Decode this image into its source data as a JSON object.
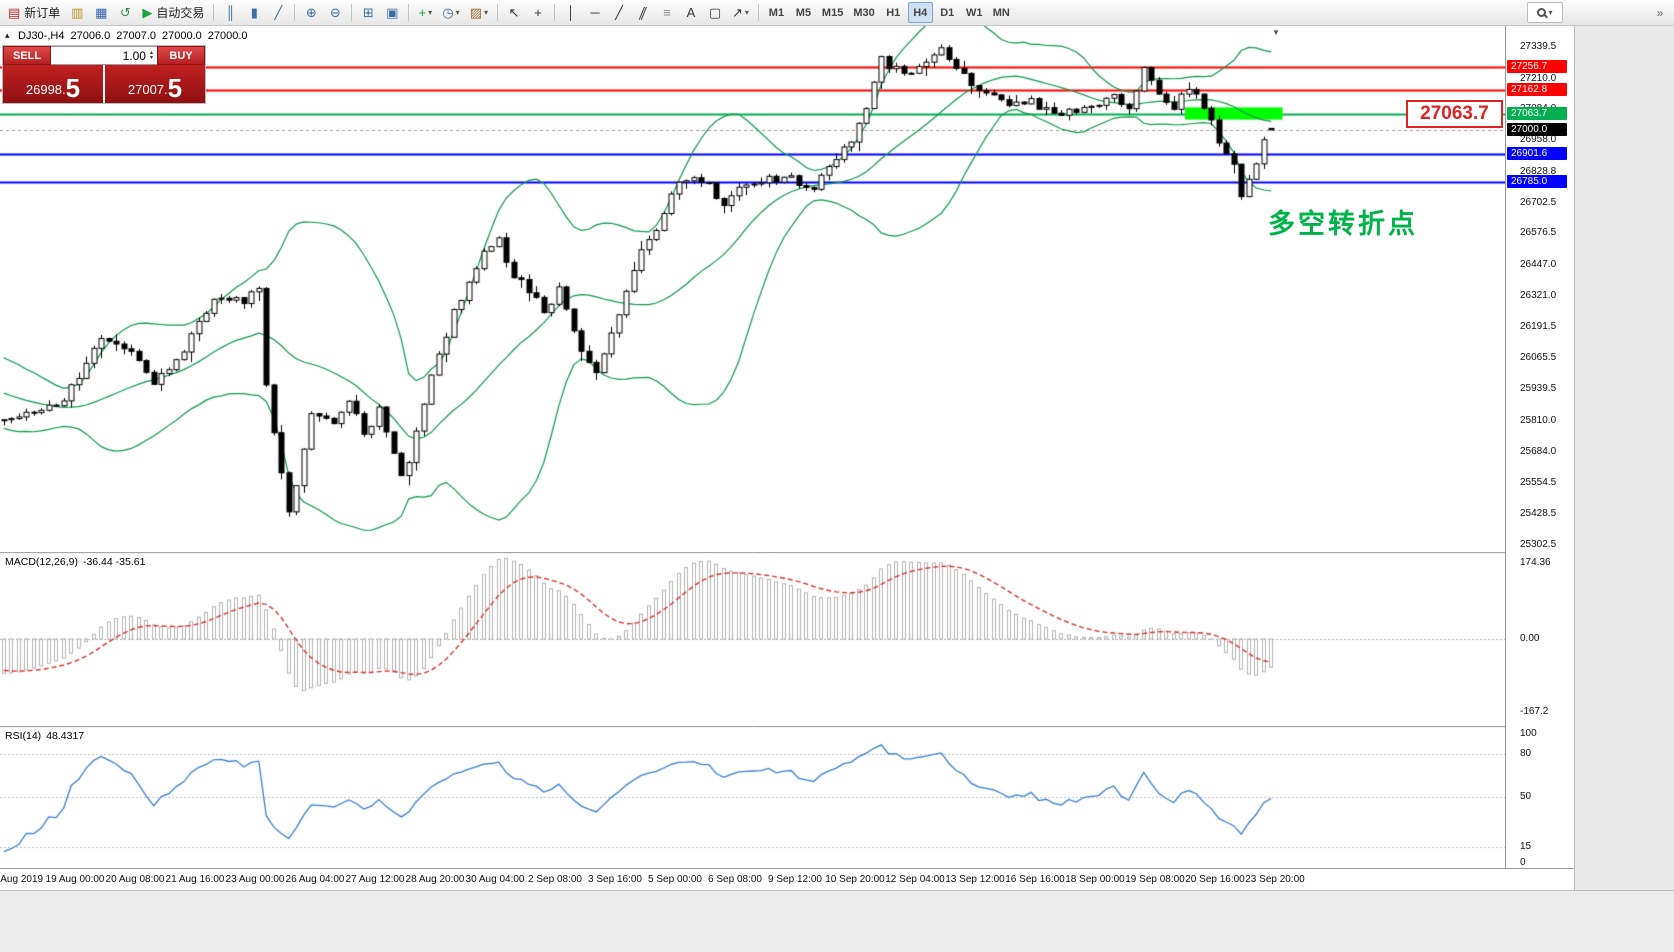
{
  "toolbar": {
    "groups": [
      {
        "items": [
          {
            "name": "new-order",
            "glyph": "▤",
            "color": "#b03030",
            "label": "新订单"
          },
          {
            "name": "chart-window",
            "glyph": "▥",
            "color": "#c09020"
          },
          {
            "name": "profiles",
            "glyph": "▦",
            "color": "#3060b0"
          },
          {
            "name": "refresh",
            "glyph": "↺",
            "color": "#309050"
          },
          {
            "name": "autotrading",
            "glyph": "▶",
            "color": "#1fa33c",
            "label": "自动交易"
          }
        ]
      },
      {
        "items": [
          {
            "name": "bar-chart",
            "glyph": "║",
            "color": "#3a6ea5"
          },
          {
            "name": "candlestick-chart",
            "glyph": "▮",
            "color": "#3a6ea5"
          },
          {
            "name": "line-chart",
            "glyph": "╱",
            "color": "#3a6ea5"
          }
        ]
      },
      {
        "items": [
          {
            "name": "zoom-in",
            "glyph": "⊕",
            "color": "#3a6ea5"
          },
          {
            "name": "zoom-out",
            "glyph": "⊖",
            "color": "#3a6ea5"
          }
        ]
      },
      {
        "items": [
          {
            "name": "tile-windows",
            "glyph": "⊞",
            "color": "#3a6ea5"
          },
          {
            "name": "cascade-windows",
            "glyph": "▣",
            "color": "#3a6ea5"
          }
        ]
      },
      {
        "items": [
          {
            "name": "indicators",
            "glyph": "+",
            "color": "#1fa33c",
            "dd": true
          },
          {
            "name": "periods",
            "glyph": "◷",
            "color": "#3a6ea5",
            "dd": true
          },
          {
            "name": "templates",
            "glyph": "▨",
            "color": "#9a6a30",
            "dd": true
          }
        ]
      },
      {
        "items": [
          {
            "name": "cursor",
            "glyph": "↖",
            "color": "#333333"
          },
          {
            "name": "crosshair",
            "glyph": "+",
            "color": "#333333"
          }
        ]
      },
      {
        "items": [
          {
            "name": "vertical-line",
            "glyph": "│",
            "color": "#333333"
          },
          {
            "name": "horizontal-line",
            "glyph": "─",
            "color": "#333333"
          },
          {
            "name": "trendline",
            "glyph": "╱",
            "color": "#333333"
          },
          {
            "name": "equidistant-channel",
            "glyph": "∥",
            "color": "#333333",
            "skew": true
          },
          {
            "name": "fibonacci",
            "glyph": "≡",
            "color": "#888888"
          },
          {
            "name": "text",
            "glyph": "A",
            "color": "#333333"
          },
          {
            "name": "text-label",
            "glyph": "▢",
            "color": "#333333"
          },
          {
            "name": "arrows",
            "glyph": "↗",
            "color": "#333333",
            "dd": true
          }
        ]
      }
    ],
    "timeframes": [
      "M1",
      "M5",
      "M15",
      "M30",
      "H1",
      "H4",
      "D1",
      "W1",
      "MN"
    ],
    "active_timeframe": "H4",
    "overflow_glyph": "»"
  },
  "chart": {
    "header": {
      "symbol_tf": "DJ30-,H4",
      "open": "27006.0",
      "high": "27007.0",
      "low": "27000.0",
      "close": "27000.0"
    },
    "one_click": {
      "sell_label": "SELL",
      "buy_label": "BUY",
      "volume": "1.00",
      "sell_price": "26998.",
      "sell_price_big": "5",
      "buy_price": "27007.",
      "buy_price_big": "5"
    },
    "price_axis_labels": [
      27339.5,
      27210.0,
      27084.0,
      26958.0,
      26828.8,
      26702.5,
      26576.5,
      26447.0,
      26321.0,
      26191.5,
      26065.5,
      25939.5,
      25810.0,
      25684.0,
      25554.5,
      25428.5,
      25302.5
    ],
    "annotations": {
      "turning_point": {
        "text": "多空转折点",
        "color": "#00b44a"
      },
      "callout": {
        "text": "27063.7",
        "color": "#e02222"
      }
    }
  },
  "macd": {
    "label": "MACD(12,26,9)",
    "values": "-36.44 -35.61",
    "axis": [
      {
        "v": 174.36,
        "t": "174.36"
      },
      {
        "v": 0,
        "t": "0.00"
      },
      {
        "v": -167.2,
        "t": "-167.2"
      }
    ]
  },
  "rsi": {
    "label": "RSI(14)",
    "value": "48.4317",
    "axis": [
      {
        "v": 100,
        "t": "100"
      },
      {
        "v": 80,
        "t": "80"
      },
      {
        "v": 50,
        "t": "50"
      },
      {
        "v": 15,
        "t": "15"
      },
      {
        "v": 0,
        "t": "0"
      }
    ]
  },
  "time_axis": {
    "labels": [
      "15 Aug 2019",
      "19 Aug 00:00",
      "20 Aug 08:00",
      "21 Aug 16:00",
      "23 Aug 00:00",
      "26 Aug 04:00",
      "27 Aug 12:00",
      "28 Aug 20:00",
      "30 Aug 04:00",
      "2 Sep 08:00",
      "3 Sep 16:00",
      "5 Sep 00:00",
      "6 Sep 08:00",
      "9 Sep 12:00",
      "10 Sep 20:00",
      "12 Sep 04:00",
      "13 Sep 12:00",
      "16 Sep 16:00",
      "18 Sep 00:00",
      "19 Sep 08:00",
      "20 Sep 16:00",
      "23 Sep 20:00"
    ],
    "first_label_candle": 2,
    "label_step_candles": 8
  },
  "chart_data": {
    "type": "candlestick",
    "symbol": "DJ30-",
    "timeframe": "H4",
    "num_candles": 170,
    "candle_spacing_px": 7.5,
    "price_range": [
      25273,
      27425
    ],
    "price_path_anchors": [
      [
        0,
        25800
      ],
      [
        8,
        25900
      ],
      [
        13,
        26150
      ],
      [
        17,
        26100
      ],
      [
        20,
        25950
      ],
      [
        24,
        26100
      ],
      [
        28,
        26320
      ],
      [
        32,
        26300
      ],
      [
        34,
        26350
      ],
      [
        35,
        25950
      ],
      [
        38,
        25430
      ],
      [
        39,
        25550
      ],
      [
        41,
        25850
      ],
      [
        44,
        25800
      ],
      [
        46,
        25900
      ],
      [
        48,
        25750
      ],
      [
        50,
        25850
      ],
      [
        53,
        25600
      ],
      [
        54,
        25650
      ],
      [
        57,
        26000
      ],
      [
        60,
        26250
      ],
      [
        64,
        26500
      ],
      [
        66,
        26550
      ],
      [
        68,
        26400
      ],
      [
        70,
        26350
      ],
      [
        72,
        26250
      ],
      [
        74,
        26350
      ],
      [
        77,
        26100
      ],
      [
        79,
        26000
      ],
      [
        82,
        26250
      ],
      [
        85,
        26500
      ],
      [
        88,
        26650
      ],
      [
        90,
        26800
      ],
      [
        93,
        26800
      ],
      [
        96,
        26700
      ],
      [
        98,
        26750
      ],
      [
        101,
        26800
      ],
      [
        105,
        26800
      ],
      [
        108,
        26750
      ],
      [
        110,
        26850
      ],
      [
        113,
        26950
      ],
      [
        115,
        27100
      ],
      [
        117,
        27290
      ],
      [
        120,
        27220
      ],
      [
        122,
        27250
      ],
      [
        125,
        27330
      ],
      [
        127,
        27250
      ],
      [
        129,
        27180
      ],
      [
        131,
        27150
      ],
      [
        134,
        27100
      ],
      [
        137,
        27120
      ],
      [
        139,
        27080
      ],
      [
        142,
        27070
      ],
      [
        145,
        27100
      ],
      [
        148,
        27130
      ],
      [
        150,
        27100
      ],
      [
        152,
        27250
      ],
      [
        154,
        27150
      ],
      [
        156,
        27100
      ],
      [
        158,
        27170
      ],
      [
        160,
        27100
      ],
      [
        162,
        26950
      ],
      [
        164,
        26850
      ],
      [
        165,
        26740
      ],
      [
        167,
        26850
      ],
      [
        168,
        26950
      ],
      [
        169,
        27006
      ]
    ],
    "last_candle": {
      "open": 27006.0,
      "high": 27007.0,
      "low": 27000.0,
      "close": 27000.0
    },
    "levels": [
      {
        "price": 27256.7,
        "color": "#ff0000",
        "width": 2
      },
      {
        "price": 27162.8,
        "color": "#ff0000",
        "width": 2
      },
      {
        "price": 27063.7,
        "color": "#00b050",
        "width": 2
      },
      {
        "price": 26901.6,
        "color": "#0000ff",
        "width": 2
      },
      {
        "price": 26785.0,
        "color": "#0000ff",
        "width": 2
      }
    ],
    "bid_line": {
      "price": 27000.0
    },
    "highlight_rect": {
      "from_candle": 158,
      "to_candle": 171,
      "top_price": 27092,
      "bottom_price": 27042,
      "color": "#00ff00"
    },
    "indicators": {
      "bollinger": {
        "period": 20,
        "deviation": 2,
        "color": "#109a4c"
      },
      "macd": {
        "fast": 12,
        "slow": 26,
        "signal": 9,
        "hist_color": "#b4b4b4",
        "signal_color": "#e03232",
        "range": [
          -200,
          200
        ]
      },
      "rsi": {
        "period": 14,
        "color": "#3a7fd5",
        "range": [
          0,
          100
        ],
        "levels": [
          80,
          50,
          15
        ]
      }
    }
  }
}
